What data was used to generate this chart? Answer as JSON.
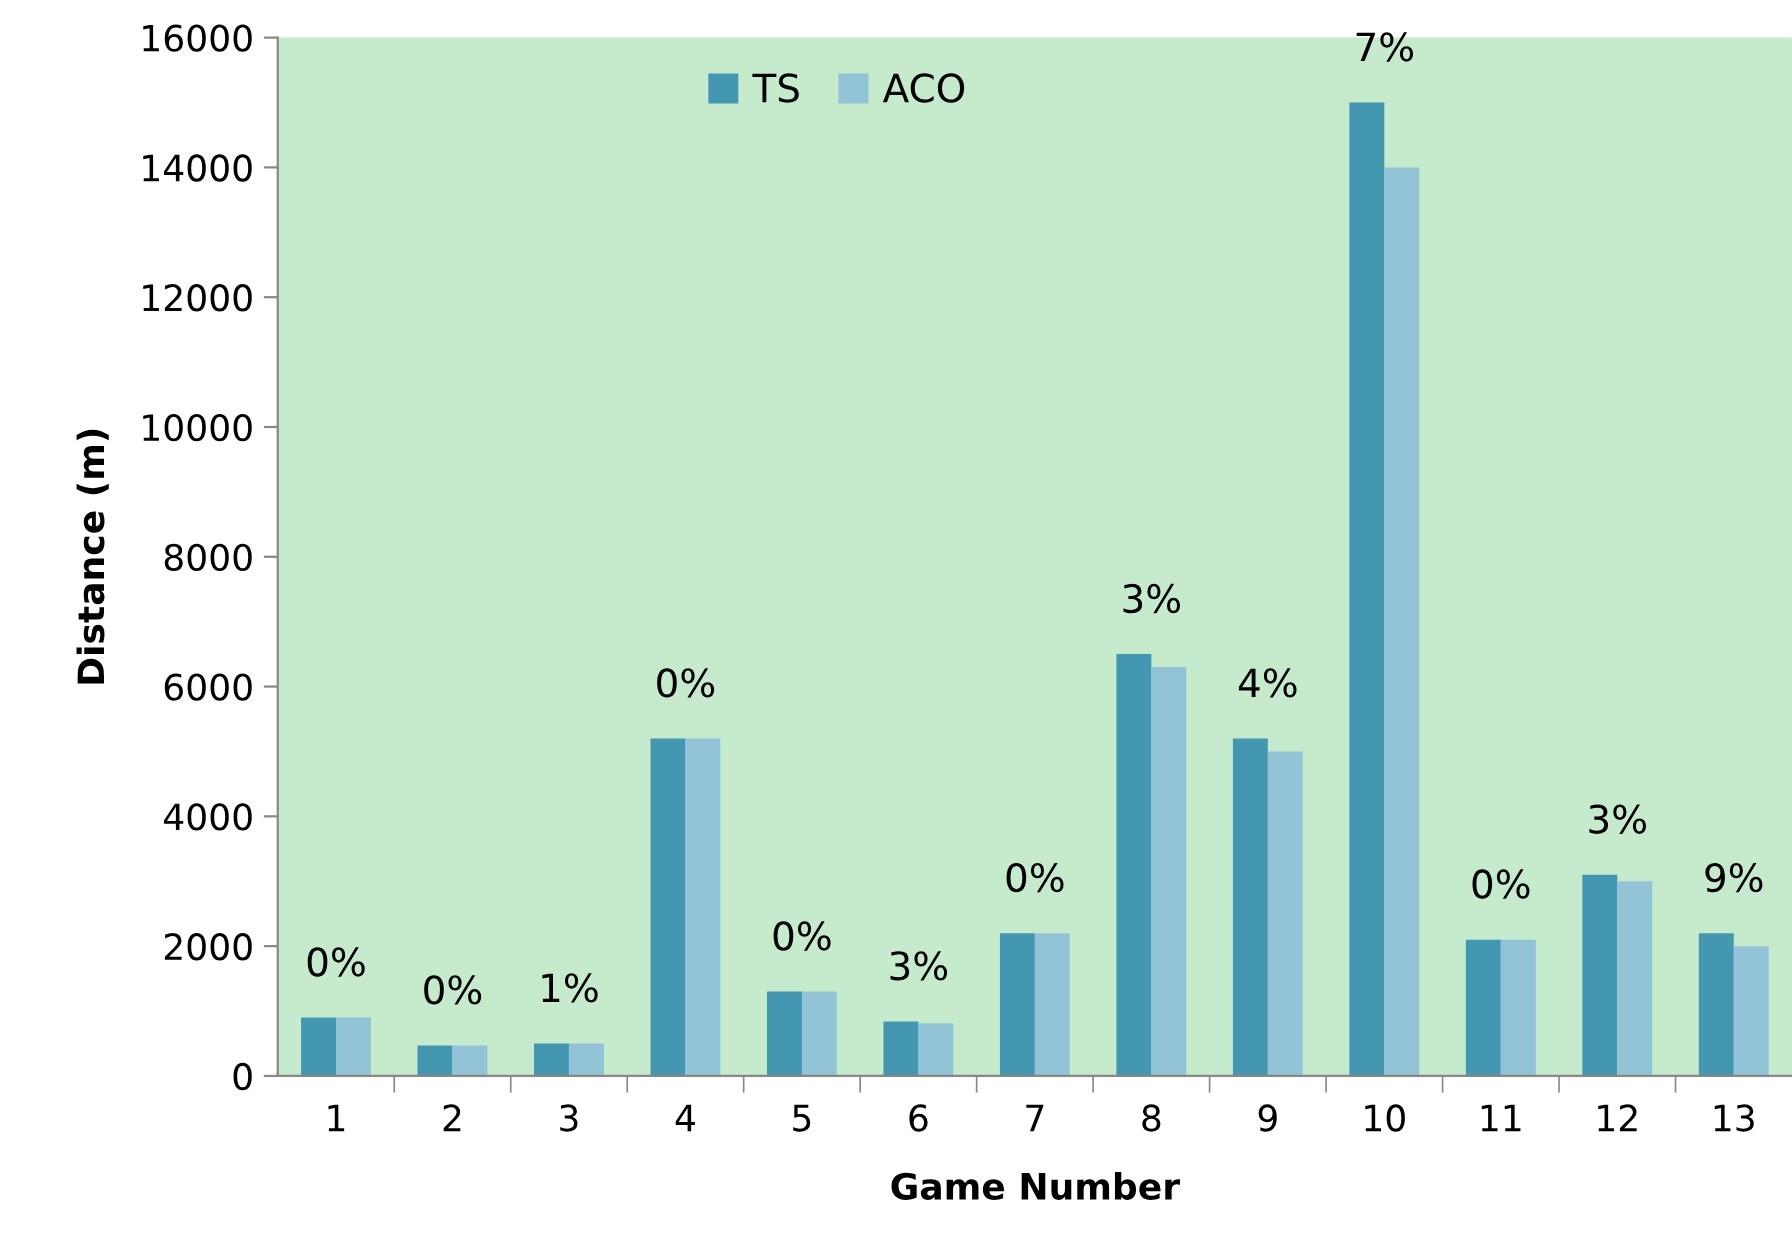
{
  "chart_data": {
    "type": "bar",
    "xlabel": "Game Number",
    "ylabel": "Distance (m)",
    "categories": [
      "1",
      "2",
      "3",
      "4",
      "5",
      "6",
      "7",
      "8",
      "9",
      "10",
      "11",
      "12",
      "13"
    ],
    "series": [
      {
        "name": "TS",
        "color": "#4397b1",
        "values": [
          900,
          470,
          500,
          5200,
          1300,
          840,
          2200,
          6500,
          5200,
          15000,
          2100,
          3100,
          2200
        ]
      },
      {
        "name": "ACO",
        "color": "#93c3d6",
        "values": [
          900,
          470,
          500,
          5200,
          1300,
          810,
          2200,
          6300,
          5000,
          14000,
          2100,
          3000,
          2000
        ]
      }
    ],
    "annotations": [
      {
        "text": "0%",
        "x": "1",
        "y": 900
      },
      {
        "text": "0%",
        "x": "2",
        "y": 470
      },
      {
        "text": "1%",
        "x": "3",
        "y": 500
      },
      {
        "text": "0%",
        "x": "4",
        "y": 5200
      },
      {
        "text": "0%",
        "x": "5",
        "y": 1300
      },
      {
        "text": "3%",
        "x": "6",
        "y": 840
      },
      {
        "text": "0%",
        "x": "7",
        "y": 2200
      },
      {
        "text": "3%",
        "x": "8",
        "y": 6500
      },
      {
        "text": "4%",
        "x": "9",
        "y": 5200
      },
      {
        "text": "7%",
        "x": "10",
        "y": 15000
      },
      {
        "text": "0%",
        "x": "11",
        "y": 2100
      },
      {
        "text": "3%",
        "x": "12",
        "y": 3100
      },
      {
        "text": "9%",
        "x": "13",
        "y": 2200
      }
    ],
    "ylim": [
      0,
      16000
    ],
    "yticks": [
      0,
      2000,
      4000,
      6000,
      8000,
      10000,
      12000,
      14000,
      16000
    ],
    "grid": false,
    "legend": "top"
  }
}
